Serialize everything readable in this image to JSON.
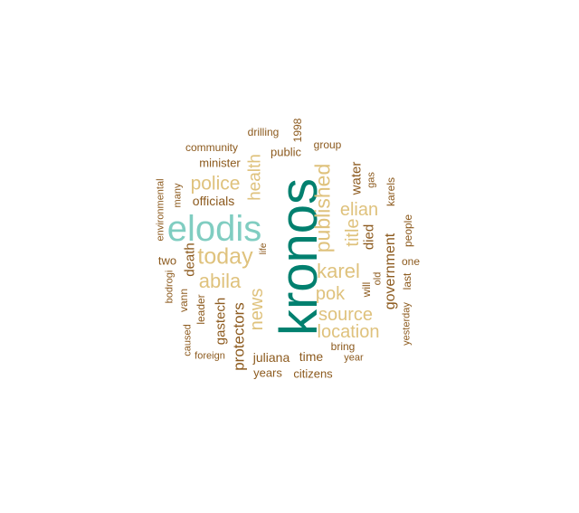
{
  "palette": {
    "dark_brown": "#8c5a1e",
    "tan": "#dfc27d",
    "teal_dark": "#01806f",
    "teal_light": "#80cdc1"
  },
  "words": [
    {
      "text": "kronos",
      "color": "teal_dark"
    },
    {
      "text": "elodis",
      "color": "teal_light"
    },
    {
      "text": "today",
      "color": "tan"
    },
    {
      "text": "published",
      "color": "tan"
    },
    {
      "text": "abila",
      "color": "tan"
    },
    {
      "text": "karel",
      "color": "tan"
    },
    {
      "text": "police",
      "color": "tan"
    },
    {
      "text": "health",
      "color": "tan"
    },
    {
      "text": "news",
      "color": "tan"
    },
    {
      "text": "source",
      "color": "tan"
    },
    {
      "text": "location",
      "color": "tan"
    },
    {
      "text": "pok",
      "color": "tan"
    },
    {
      "text": "elian",
      "color": "tan"
    },
    {
      "text": "title",
      "color": "tan"
    },
    {
      "text": "protectors",
      "color": "dark_brown"
    },
    {
      "text": "government",
      "color": "dark_brown"
    },
    {
      "text": "gastech",
      "color": "dark_brown"
    },
    {
      "text": "death",
      "color": "dark_brown"
    },
    {
      "text": "water",
      "color": "dark_brown"
    },
    {
      "text": "died",
      "color": "dark_brown"
    },
    {
      "text": "officials",
      "color": "dark_brown"
    },
    {
      "text": "minister",
      "color": "dark_brown"
    },
    {
      "text": "public",
      "color": "dark_brown"
    },
    {
      "text": "group",
      "color": "dark_brown"
    },
    {
      "text": "drilling",
      "color": "dark_brown"
    },
    {
      "text": "community",
      "color": "dark_brown"
    },
    {
      "text": "1998",
      "color": "dark_brown"
    },
    {
      "text": "juliana",
      "color": "dark_brown"
    },
    {
      "text": "time",
      "color": "dark_brown"
    },
    {
      "text": "years",
      "color": "dark_brown"
    },
    {
      "text": "citizens",
      "color": "dark_brown"
    },
    {
      "text": "bring",
      "color": "dark_brown"
    },
    {
      "text": "year",
      "color": "dark_brown"
    },
    {
      "text": "old",
      "color": "dark_brown"
    },
    {
      "text": "will",
      "color": "dark_brown"
    },
    {
      "text": "gas",
      "color": "dark_brown"
    },
    {
      "text": "karels",
      "color": "dark_brown"
    },
    {
      "text": "people",
      "color": "dark_brown"
    },
    {
      "text": "one",
      "color": "dark_brown"
    },
    {
      "text": "last",
      "color": "dark_brown"
    },
    {
      "text": "yesterday",
      "color": "dark_brown"
    },
    {
      "text": "environmental",
      "color": "dark_brown"
    },
    {
      "text": "many",
      "color": "dark_brown"
    },
    {
      "text": "two",
      "color": "dark_brown"
    },
    {
      "text": "bodrogi",
      "color": "dark_brown"
    },
    {
      "text": "vann",
      "color": "dark_brown"
    },
    {
      "text": "leader",
      "color": "dark_brown"
    },
    {
      "text": "caused",
      "color": "dark_brown"
    },
    {
      "text": "foreign",
      "color": "dark_brown"
    },
    {
      "text": "life",
      "color": "dark_brown"
    }
  ]
}
